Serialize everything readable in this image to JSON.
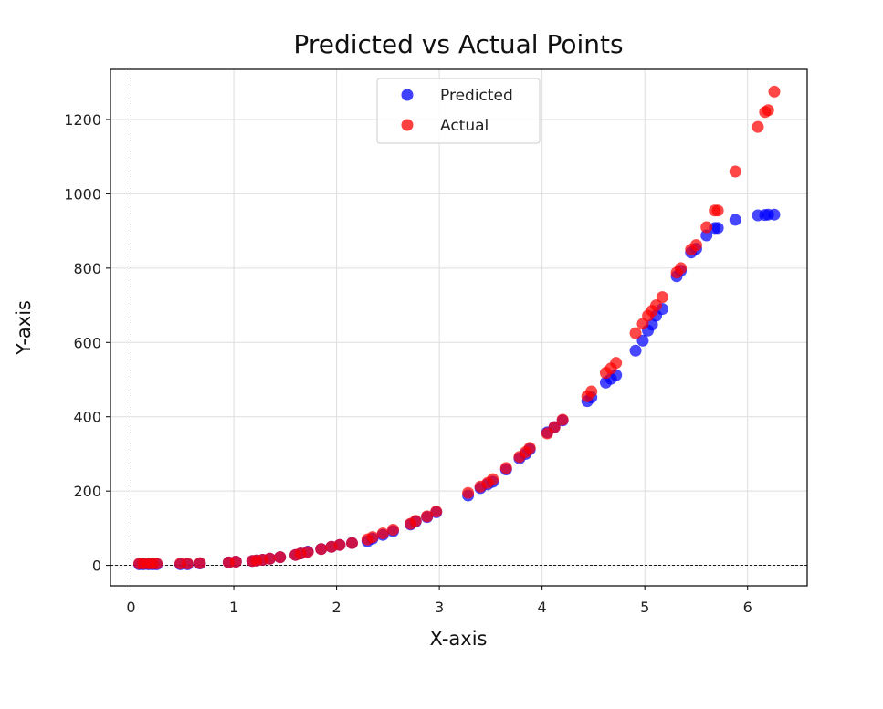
{
  "chart_data": {
    "type": "scatter",
    "title": "Predicted vs Actual Points",
    "xlabel": "X-axis",
    "ylabel": "Y-axis",
    "xlim": [
      -0.2,
      6.58
    ],
    "ylim": [
      -55,
      1335
    ],
    "xticks": [
      0,
      1,
      2,
      3,
      4,
      5,
      6
    ],
    "yticks": [
      0,
      200,
      400,
      600,
      800,
      1000,
      1200
    ],
    "grid": true,
    "legend_position": "upper center",
    "reference_lines": {
      "x": 0,
      "y": 0
    },
    "series": [
      {
        "name": "Predicted",
        "color": "#0000ff",
        "x": [
          0.08,
          0.12,
          0.17,
          0.21,
          0.25,
          0.48,
          0.55,
          0.67,
          0.95,
          1.02,
          1.18,
          1.22,
          1.28,
          1.35,
          1.45,
          1.6,
          1.65,
          1.72,
          1.85,
          1.95,
          2.03,
          2.15,
          2.3,
          2.35,
          2.45,
          2.55,
          2.72,
          2.77,
          2.88,
          2.97,
          3.28,
          3.4,
          3.47,
          3.52,
          3.65,
          3.78,
          3.84,
          3.88,
          4.05,
          4.12,
          4.2,
          4.44,
          4.48,
          4.62,
          4.67,
          4.72,
          4.91,
          4.98,
          5.03,
          5.07,
          5.11,
          5.17,
          5.31,
          5.35,
          5.45,
          5.5,
          5.6,
          5.68,
          5.71,
          5.88,
          6.1,
          6.17,
          6.2,
          6.26
        ],
        "y": [
          3,
          3,
          3,
          3,
          3,
          3,
          3,
          5,
          8,
          10,
          12,
          13,
          15,
          18,
          22,
          28,
          32,
          37,
          44,
          50,
          55,
          60,
          65,
          72,
          82,
          92,
          110,
          118,
          130,
          143,
          188,
          208,
          218,
          225,
          258,
          288,
          300,
          312,
          358,
          372,
          390,
          442,
          452,
          492,
          502,
          512,
          578,
          605,
          632,
          648,
          672,
          690,
          778,
          793,
          842,
          852,
          888,
          908,
          908,
          930,
          942,
          943,
          944,
          944
        ]
      },
      {
        "name": "Actual",
        "color": "#ff0000",
        "x": [
          0.08,
          0.12,
          0.17,
          0.21,
          0.25,
          0.48,
          0.55,
          0.67,
          0.95,
          1.02,
          1.18,
          1.22,
          1.28,
          1.35,
          1.45,
          1.6,
          1.65,
          1.72,
          1.85,
          1.95,
          2.03,
          2.15,
          2.3,
          2.35,
          2.45,
          2.55,
          2.72,
          2.77,
          2.88,
          2.97,
          3.28,
          3.4,
          3.47,
          3.52,
          3.65,
          3.78,
          3.84,
          3.88,
          4.05,
          4.12,
          4.2,
          4.44,
          4.48,
          4.62,
          4.67,
          4.72,
          4.91,
          4.98,
          5.03,
          5.07,
          5.11,
          5.17,
          5.31,
          5.35,
          5.45,
          5.5,
          5.6,
          5.68,
          5.71,
          5.88,
          6.1,
          6.17,
          6.2,
          6.26
        ],
        "y": [
          5,
          5,
          5,
          5,
          5,
          5,
          5,
          6,
          8,
          10,
          12,
          13,
          15,
          18,
          22,
          28,
          32,
          36,
          44,
          50,
          55,
          60,
          70,
          76,
          86,
          96,
          112,
          120,
          132,
          145,
          195,
          212,
          222,
          232,
          262,
          292,
          305,
          316,
          355,
          372,
          392,
          455,
          468,
          518,
          530,
          545,
          625,
          650,
          672,
          685,
          700,
          722,
          788,
          800,
          850,
          862,
          910,
          955,
          955,
          1060,
          1180,
          1220,
          1225,
          1275
        ]
      }
    ]
  }
}
